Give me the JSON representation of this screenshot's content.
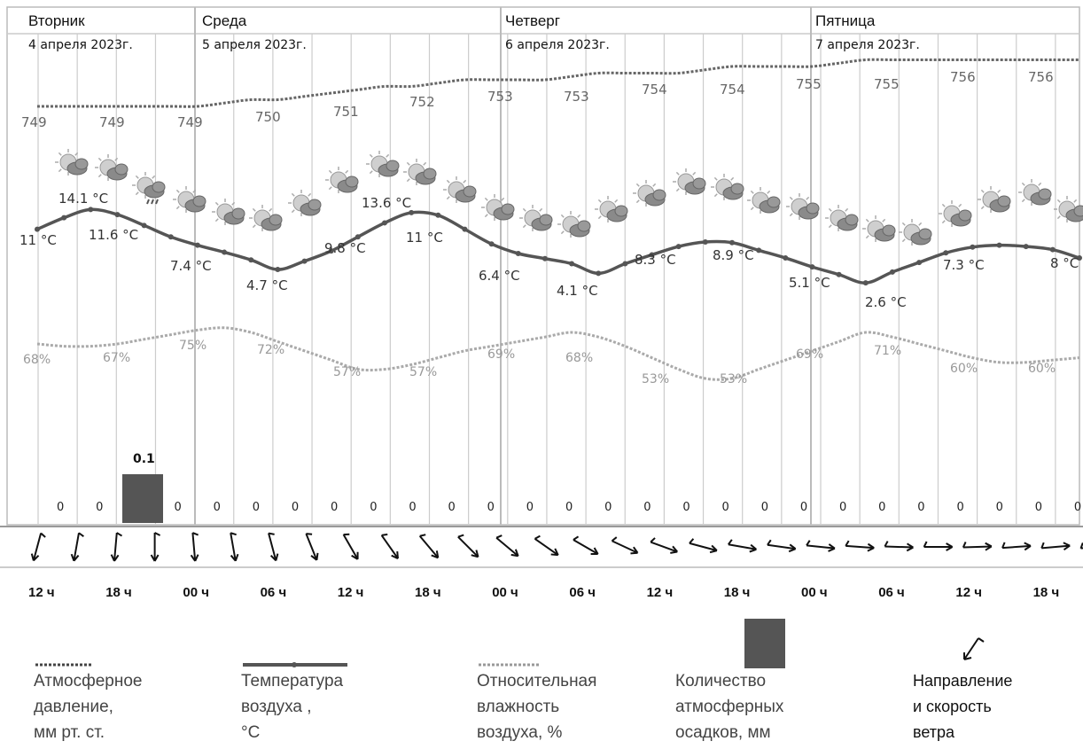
{
  "chart_data": {
    "type": "line",
    "days": [
      {
        "name": "Вторник",
        "date": "4 апреля 2023г."
      },
      {
        "name": "Среда",
        "date": "5 апреля 2023г."
      },
      {
        "name": "Четверг",
        "date": "6 апреля 2023г."
      },
      {
        "name": "Пятница",
        "date": "7 апреля 2023г."
      }
    ],
    "time_labels": [
      "12 ч",
      "18 ч",
      "00 ч",
      "06 ч",
      "12 ч",
      "18 ч",
      "00 ч",
      "06 ч",
      "12 ч",
      "18 ч",
      "00 ч",
      "06 ч",
      "12 ч",
      "18 ч"
    ],
    "series": [
      {
        "key": "pressure",
        "labels": [
          "749",
          "749",
          "749",
          "750",
          "751",
          "752",
          "753",
          "753",
          "754",
          "754",
          "755",
          "755",
          "756",
          "756"
        ],
        "values": [
          749,
          749,
          749,
          749,
          749,
          749,
          749,
          749.5,
          750,
          750,
          750.5,
          751,
          751.5,
          752,
          752,
          752.5,
          753,
          753,
          753,
          753,
          753.5,
          754,
          754,
          754,
          754,
          754.5,
          755,
          755,
          755,
          755,
          755.5,
          756,
          756,
          756,
          756,
          756,
          756,
          756,
          756,
          756
        ]
      },
      {
        "key": "temperature",
        "labels": [
          "11 °C",
          "14.1 °C",
          "11.6 °C",
          "7.4 °C",
          "4.7 °C",
          "9.8 °C",
          "13.6 °C",
          "11 °C",
          "6.4 °C",
          "4.1 °C",
          "8.3 °C",
          "8.9 °C",
          "5.1 °C",
          "2.6 °C",
          "7.3 °C",
          "8 °C"
        ],
        "values": [
          11,
          12.8,
          14.1,
          13.3,
          11.6,
          9.8,
          8.5,
          7.4,
          6.2,
          4.7,
          6,
          7.6,
          9.8,
          12,
          13.6,
          13.2,
          11,
          8.7,
          7.2,
          6.4,
          5.6,
          4.1,
          5.6,
          7,
          8.3,
          9,
          8.9,
          7.7,
          6.5,
          5.1,
          3.9,
          2.6,
          4.3,
          5.8,
          7.3,
          8.2,
          8.5,
          8.3,
          7.8,
          6.5
        ]
      },
      {
        "key": "humidity",
        "labels": [
          "68%",
          "67%",
          "75%",
          "72%",
          "57%",
          "57%",
          "69%",
          "68%",
          "53%",
          "53%",
          "69%",
          "71%",
          "60%",
          "60%"
        ],
        "values": [
          68,
          67,
          67,
          68,
          70,
          72,
          74,
          75,
          73,
          69,
          65,
          61,
          57,
          57,
          59,
          62,
          65,
          67,
          69,
          71,
          73,
          71,
          67,
          62,
          57,
          53,
          53,
          57,
          61,
          65,
          69,
          73,
          71,
          68,
          65,
          62,
          60,
          60,
          61,
          62
        ]
      }
    ],
    "precipitation": {
      "bar_value": "0.1",
      "values": [
        "0",
        "0",
        "0.1",
        "0",
        "0",
        "0",
        "0",
        "0",
        "0",
        "0",
        "0",
        "0",
        "0",
        "0",
        "0",
        "0",
        "0",
        "0",
        "0",
        "0",
        "0",
        "0",
        "0",
        "0",
        "0",
        "0",
        "0"
      ]
    },
    "wind_directions_deg": [
      195,
      190,
      185,
      180,
      175,
      170,
      165,
      158,
      150,
      145,
      140,
      135,
      130,
      125,
      120,
      115,
      110,
      105,
      100,
      98,
      96,
      94,
      92,
      90,
      88,
      86,
      85,
      84
    ]
  },
  "colors": {
    "pressure": "#666666",
    "temperature": "#555555",
    "humidity": "#aaaaaa",
    "precip_bar": "#555555",
    "grid": "#cccccc",
    "day_divider": "#bbbbbb"
  },
  "legend": [
    {
      "key": "pressure",
      "text": "Атмосферное\nдавление,\nмм рт. ст."
    },
    {
      "key": "temperature",
      "text": "Температура\nвоздуха ,\n°C"
    },
    {
      "key": "humidity",
      "text": "Относительная\nвлажность\nвоздуха, %"
    },
    {
      "key": "precipitation",
      "text": "Количество\nатмосферных\nосадков, мм"
    },
    {
      "key": "wind",
      "text": "Направление\nи скорость\nветра"
    }
  ]
}
